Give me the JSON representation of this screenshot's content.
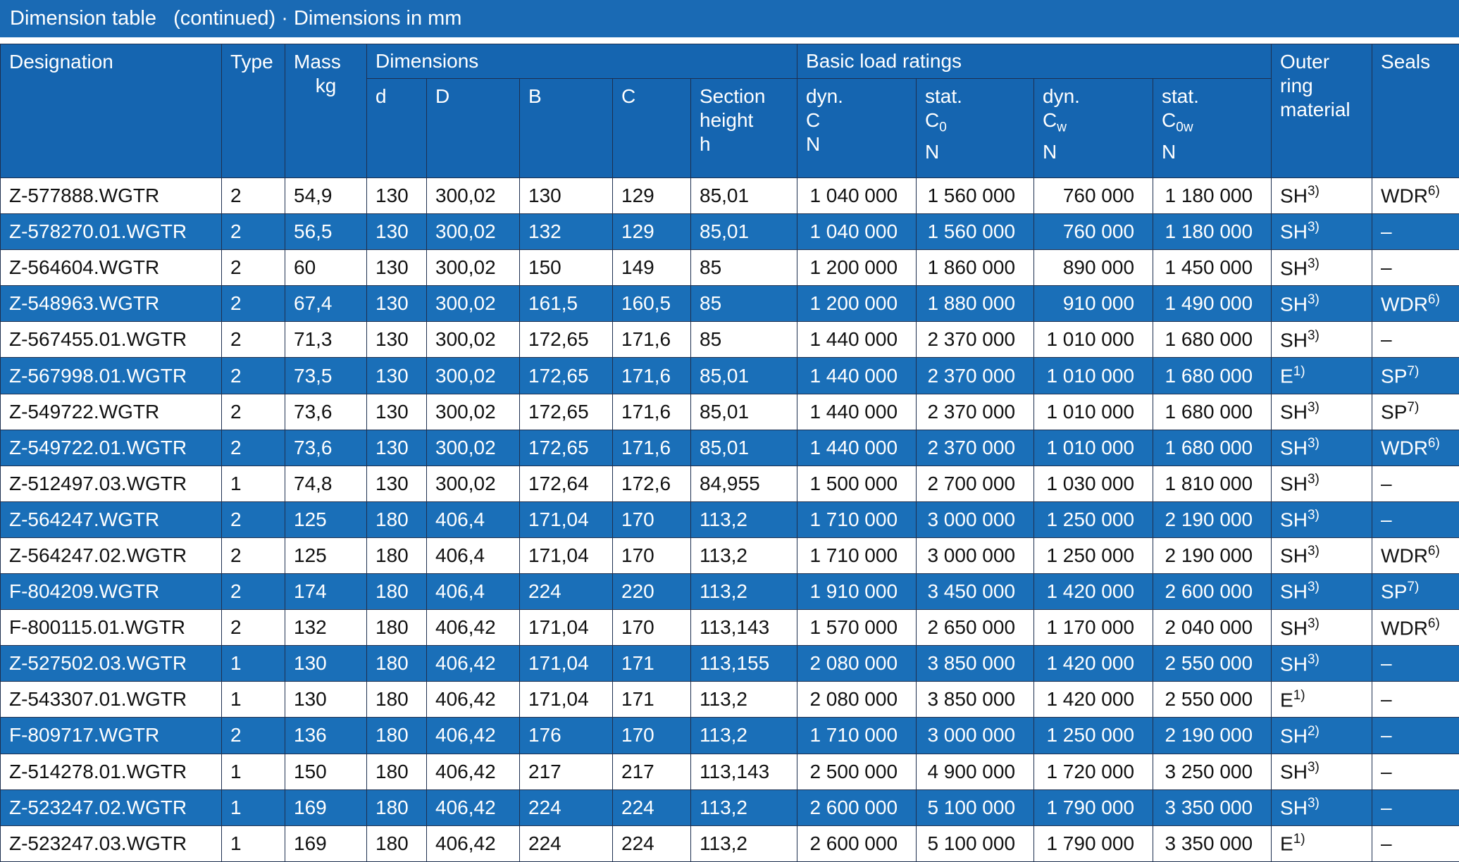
{
  "title": "Dimension table   (continued) · Dimensions in mm",
  "groups": [
    "Dimensions",
    "Basic load ratings"
  ],
  "columns": [
    {
      "label": "Designation"
    },
    {
      "label": "Type"
    },
    {
      "label": "Mass",
      "unit": "kg"
    },
    {
      "label": "d"
    },
    {
      "label": "D"
    },
    {
      "label": "B"
    },
    {
      "label": "C"
    },
    {
      "label": "Section height",
      "unit": "h"
    },
    {
      "label": "dyn.",
      "symbol": "C",
      "unit": "N"
    },
    {
      "label": "stat.",
      "symbol": "C",
      "sub": "0",
      "unit": "N"
    },
    {
      "label": "dyn.",
      "symbol": "C",
      "sub": "w",
      "unit": "N"
    },
    {
      "label": "stat.",
      "symbol": "C",
      "sub": "0w",
      "unit": "N"
    },
    {
      "label": "Outer ring material"
    },
    {
      "label": "Seals"
    }
  ],
  "rows": [
    [
      "Z-577888.WGTR",
      "2",
      "54,9",
      "130",
      "300,02",
      "130",
      "129",
      "85,01",
      "1 040 000",
      "1 560 000",
      "760 000",
      "1 180 000",
      {
        "text": "SH",
        "note": "3)"
      },
      {
        "text": "WDR",
        "note": "6)"
      }
    ],
    [
      "Z-578270.01.WGTR",
      "2",
      "56,5",
      "130",
      "300,02",
      "132",
      "129",
      "85,01",
      "1 040 000",
      "1 560 000",
      "760 000",
      "1 180 000",
      {
        "text": "SH",
        "note": "3)"
      },
      "–"
    ],
    [
      "Z-564604.WGTR",
      "2",
      "60",
      "130",
      "300,02",
      "150",
      "149",
      "85",
      "1 200 000",
      "1 860 000",
      "890 000",
      "1 450 000",
      {
        "text": "SH",
        "note": "3)"
      },
      "–"
    ],
    [
      "Z-548963.WGTR",
      "2",
      "67,4",
      "130",
      "300,02",
      "161,5",
      "160,5",
      "85",
      "1 200 000",
      "1 880 000",
      "910 000",
      "1 490 000",
      {
        "text": "SH",
        "note": "3)"
      },
      {
        "text": "WDR",
        "note": "6)"
      }
    ],
    [
      "Z-567455.01.WGTR",
      "2",
      "71,3",
      "130",
      "300,02",
      "172,65",
      "171,6",
      "85",
      "1 440 000",
      "2 370 000",
      "1 010 000",
      "1 680 000",
      {
        "text": "SH",
        "note": "3)"
      },
      "–"
    ],
    [
      "Z-567998.01.WGTR",
      "2",
      "73,5",
      "130",
      "300,02",
      "172,65",
      "171,6",
      "85,01",
      "1 440 000",
      "2 370 000",
      "1 010 000",
      "1 680 000",
      {
        "text": "E",
        "note": "1)"
      },
      {
        "text": "SP",
        "note": "7)"
      }
    ],
    [
      "Z-549722.WGTR",
      "2",
      "73,6",
      "130",
      "300,02",
      "172,65",
      "171,6",
      "85,01",
      "1 440 000",
      "2 370 000",
      "1 010 000",
      "1 680 000",
      {
        "text": "SH",
        "note": "3)"
      },
      {
        "text": "SP",
        "note": "7)"
      }
    ],
    [
      "Z-549722.01.WGTR",
      "2",
      "73,6",
      "130",
      "300,02",
      "172,65",
      "171,6",
      "85,01",
      "1 440 000",
      "2 370 000",
      "1 010 000",
      "1 680 000",
      {
        "text": "SH",
        "note": "3)"
      },
      {
        "text": "WDR",
        "note": "6)"
      }
    ],
    [
      "Z-512497.03.WGTR",
      "1",
      "74,8",
      "130",
      "300,02",
      "172,64",
      "172,6",
      "84,955",
      "1 500 000",
      "2 700 000",
      "1 030 000",
      "1 810 000",
      {
        "text": "SH",
        "note": "3)"
      },
      "–"
    ],
    [
      "Z-564247.WGTR",
      "2",
      "125",
      "180",
      "406,4",
      "171,04",
      "170",
      "113,2",
      "1 710 000",
      "3 000 000",
      "1 250 000",
      "2 190 000",
      {
        "text": "SH",
        "note": "3)"
      },
      "–"
    ],
    [
      "Z-564247.02.WGTR",
      "2",
      "125",
      "180",
      "406,4",
      "171,04",
      "170",
      "113,2",
      "1 710 000",
      "3 000 000",
      "1 250 000",
      "2 190 000",
      {
        "text": "SH",
        "note": "3)"
      },
      {
        "text": "WDR",
        "note": "6)"
      }
    ],
    [
      "F-804209.WGTR",
      "2",
      "174",
      "180",
      "406,4",
      "224",
      "220",
      "113,2",
      "1 910 000",
      "3 450 000",
      "1 420 000",
      "2 600 000",
      {
        "text": "SH",
        "note": "3)"
      },
      {
        "text": "SP",
        "note": "7)"
      }
    ],
    [
      "F-800115.01.WGTR",
      "2",
      "132",
      "180",
      "406,42",
      "171,04",
      "170",
      "113,143",
      "1 570 000",
      "2 650 000",
      "1 170 000",
      "2 040 000",
      {
        "text": "SH",
        "note": "3)"
      },
      {
        "text": "WDR",
        "note": "6)"
      }
    ],
    [
      "Z-527502.03.WGTR",
      "1",
      "130",
      "180",
      "406,42",
      "171,04",
      "171",
      "113,155",
      "2 080 000",
      "3 850 000",
      "1 420 000",
      "2 550 000",
      {
        "text": "SH",
        "note": "3)"
      },
      "–"
    ],
    [
      "Z-543307.01.WGTR",
      "1",
      "130",
      "180",
      "406,42",
      "171,04",
      "171",
      "113,2",
      "2 080 000",
      "3 850 000",
      "1 420 000",
      "2 550 000",
      {
        "text": "E",
        "note": "1)"
      },
      "–"
    ],
    [
      "F-809717.WGTR",
      "2",
      "136",
      "180",
      "406,42",
      "176",
      "170",
      "113,2",
      "1 710 000",
      "3 000 000",
      "1 250 000",
      "2 190 000",
      {
        "text": "SH",
        "note": "2)"
      },
      "–"
    ],
    [
      "Z-514278.01.WGTR",
      "1",
      "150",
      "180",
      "406,42",
      "217",
      "217",
      "113,143",
      "2 500 000",
      "4 900 000",
      "1 720 000",
      "3 250 000",
      {
        "text": "SH",
        "note": "3)"
      },
      "–"
    ],
    [
      "Z-523247.02.WGTR",
      "1",
      "169",
      "180",
      "406,42",
      "224",
      "224",
      "113,2",
      "2 600 000",
      "5 100 000",
      "1 790 000",
      "3 350 000",
      {
        "text": "SH",
        "note": "3)"
      },
      "–"
    ],
    [
      "Z-523247.03.WGTR",
      "1",
      "169",
      "180",
      "406,42",
      "224",
      "224",
      "113,2",
      "2 600 000",
      "5 100 000",
      "1 790 000",
      "3 350 000",
      {
        "text": "E",
        "note": "1)"
      },
      "–"
    ]
  ]
}
